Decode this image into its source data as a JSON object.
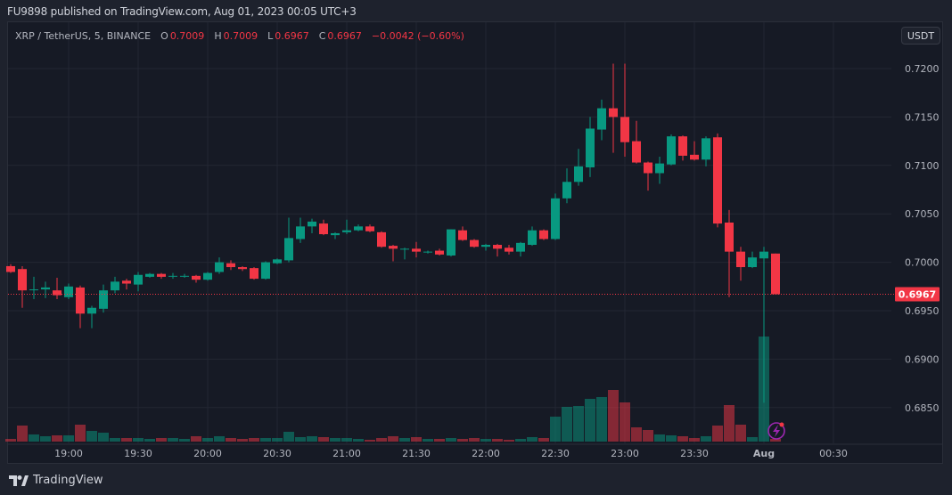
{
  "header": {
    "published_text": "FU9898 published on TradingView.com, Aug 01, 2023 00:05 UTC+3"
  },
  "legend": {
    "symbol": "XRP / TetherUS, 5, BINANCE",
    "o_label": "O",
    "o": "0.7009",
    "h_label": "H",
    "h": "0.7009",
    "l_label": "L",
    "l": "0.6967",
    "c_label": "C",
    "c": "0.6967",
    "change": "−0.0042 (−0.60%)"
  },
  "currency_button": "USDT",
  "footer": {
    "brand": "TradingView"
  },
  "colors": {
    "up": "#089981",
    "down": "#f23645",
    "background": "#161a25",
    "grid": "#232733"
  },
  "chart_data": {
    "type": "candlestick",
    "interval": "5",
    "price_ticks": [
      "0.7200",
      "0.7150",
      "0.7100",
      "0.7050",
      "0.7000",
      "0.6950",
      "0.6900",
      "0.6850"
    ],
    "ylim": [
      0.682,
      0.723
    ],
    "time_ticks": [
      "19:00",
      "19:30",
      "20:00",
      "20:30",
      "21:00",
      "21:30",
      "22:00",
      "22:30",
      "23:00",
      "23:30",
      "Aug",
      "00:30"
    ],
    "last_price": "0.6967",
    "candles": [
      [
        0.6996,
        0.6998,
        0.6989,
        0.699
      ],
      [
        0.6993,
        0.6996,
        0.6953,
        0.6971
      ],
      [
        0.6972,
        0.6985,
        0.6962,
        0.6972
      ],
      [
        0.6972,
        0.698,
        0.6963,
        0.6974
      ],
      [
        0.6971,
        0.6984,
        0.6962,
        0.6966
      ],
      [
        0.6964,
        0.6978,
        0.6962,
        0.6975
      ],
      [
        0.6974,
        0.6976,
        0.6932,
        0.6947
      ],
      [
        0.6947,
        0.6955,
        0.6932,
        0.6953
      ],
      [
        0.6952,
        0.6977,
        0.6948,
        0.6971
      ],
      [
        0.6971,
        0.6985,
        0.6968,
        0.698
      ],
      [
        0.6981,
        0.6983,
        0.6972,
        0.6978
      ],
      [
        0.6977,
        0.699,
        0.697,
        0.6987
      ],
      [
        0.6985,
        0.6989,
        0.6984,
        0.6988
      ],
      [
        0.6988,
        0.6989,
        0.6983,
        0.6985
      ],
      [
        0.6986,
        0.6989,
        0.6983,
        0.6986
      ],
      [
        0.6986,
        0.6988,
        0.6984,
        0.6986
      ],
      [
        0.6986,
        0.6987,
        0.6979,
        0.6982
      ],
      [
        0.6982,
        0.699,
        0.6981,
        0.6989
      ],
      [
        0.699,
        0.7005,
        0.6988,
        0.7
      ],
      [
        0.6999,
        0.7002,
        0.6992,
        0.6995
      ],
      [
        0.6995,
        0.6996,
        0.6991,
        0.6993
      ],
      [
        0.6994,
        0.6995,
        0.6982,
        0.6983
      ],
      [
        0.6983,
        0.7001,
        0.6982,
        0.7
      ],
      [
        0.6999,
        0.7004,
        0.6998,
        0.7003
      ],
      [
        0.7002,
        0.7046,
        0.7,
        0.7025
      ],
      [
        0.7024,
        0.7046,
        0.702,
        0.7037
      ],
      [
        0.7037,
        0.7045,
        0.703,
        0.7042
      ],
      [
        0.704,
        0.7044,
        0.7028,
        0.7029
      ],
      [
        0.7028,
        0.7031,
        0.7024,
        0.703
      ],
      [
        0.7031,
        0.7044,
        0.7029,
        0.7033
      ],
      [
        0.7033,
        0.7039,
        0.7032,
        0.7037
      ],
      [
        0.7037,
        0.7039,
        0.7031,
        0.7032
      ],
      [
        0.7031,
        0.7032,
        0.7015,
        0.7016
      ],
      [
        0.7017,
        0.7018,
        0.7001,
        0.7014
      ],
      [
        0.7014,
        0.7015,
        0.7003,
        0.7014
      ],
      [
        0.7014,
        0.7021,
        0.7005,
        0.7011
      ],
      [
        0.7011,
        0.7012,
        0.7009,
        0.7011
      ],
      [
        0.7012,
        0.7014,
        0.7007,
        0.7008
      ],
      [
        0.7007,
        0.7034,
        0.7006,
        0.7034
      ],
      [
        0.7033,
        0.7037,
        0.7022,
        0.7023
      ],
      [
        0.7023,
        0.7024,
        0.7015,
        0.7016
      ],
      [
        0.7016,
        0.7019,
        0.7012,
        0.7018
      ],
      [
        0.7018,
        0.7019,
        0.7006,
        0.7014
      ],
      [
        0.7015,
        0.7018,
        0.7008,
        0.7011
      ],
      [
        0.7011,
        0.7021,
        0.7006,
        0.702
      ],
      [
        0.7018,
        0.7037,
        0.7017,
        0.7033
      ],
      [
        0.7033,
        0.7034,
        0.7023,
        0.7024
      ],
      [
        0.7024,
        0.7071,
        0.7023,
        0.7066
      ],
      [
        0.7066,
        0.7097,
        0.7061,
        0.7083
      ],
      [
        0.7083,
        0.7117,
        0.7079,
        0.7099
      ],
      [
        0.7098,
        0.715,
        0.7088,
        0.7138
      ],
      [
        0.7137,
        0.7168,
        0.7126,
        0.7159
      ],
      [
        0.7159,
        0.7205,
        0.7113,
        0.715
      ],
      [
        0.715,
        0.7205,
        0.7109,
        0.7124
      ],
      [
        0.7125,
        0.7146,
        0.7102,
        0.7103
      ],
      [
        0.7103,
        0.7104,
        0.7074,
        0.7092
      ],
      [
        0.7092,
        0.7109,
        0.7081,
        0.7102
      ],
      [
        0.7101,
        0.7132,
        0.71,
        0.713
      ],
      [
        0.713,
        0.7131,
        0.7105,
        0.711
      ],
      [
        0.7111,
        0.7125,
        0.7105,
        0.7106
      ],
      [
        0.7106,
        0.713,
        0.7099,
        0.7128
      ],
      [
        0.7129,
        0.7133,
        0.7036,
        0.704
      ],
      [
        0.7041,
        0.7054,
        0.6964,
        0.7011
      ],
      [
        0.7011,
        0.7016,
        0.6981,
        0.6995
      ],
      [
        0.6995,
        0.7011,
        0.6994,
        0.7005
      ],
      [
        0.7004,
        0.7016,
        0.6855,
        0.7011
      ],
      [
        0.7009,
        0.7009,
        0.6967,
        0.6967
      ]
    ],
    "volume_relative": [
      3,
      18,
      8,
      6,
      7,
      7,
      19,
      12,
      10,
      4,
      4,
      4,
      3,
      4,
      4,
      3,
      6,
      4,
      6,
      4,
      3,
      4,
      4,
      4,
      11,
      5,
      6,
      5,
      4,
      4,
      3,
      2,
      4,
      6,
      4,
      5,
      3,
      3,
      4,
      3,
      4,
      3,
      3,
      2,
      3,
      5,
      4,
      28,
      39,
      40,
      48,
      50,
      58,
      44,
      16,
      13,
      8,
      7,
      6,
      4,
      6,
      18,
      41,
      19,
      5,
      118,
      3
    ]
  }
}
